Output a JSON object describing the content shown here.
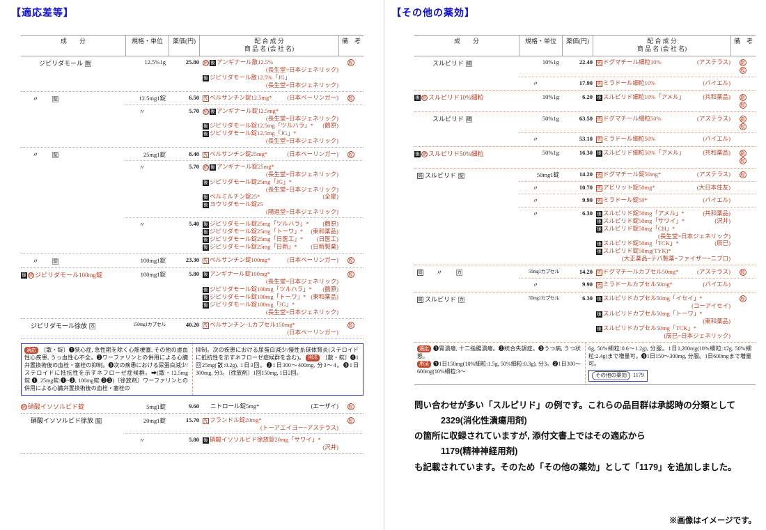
{
  "titles": {
    "left": "【適応差等】",
    "right": "【その他の薬効】"
  },
  "table_headers": {
    "ingredient": "成　　分",
    "unit": "規格・単位",
    "price": "薬価(円)",
    "products_line1": "配 合 成 分",
    "products_line2": "商 品 名 (会 社 名)",
    "remarks": "備　考"
  },
  "marker_glyphs": {
    "sen": "先",
    "kou": "後",
    "tou": "統",
    "kyoku": "局",
    "gen": "般",
    "geki": "劇",
    "ditto": "〃"
  },
  "colors": {
    "title_blue": "#1212cc",
    "accent_red": "#b0462c",
    "note_border_blue": "#2b3bc0",
    "label_red_bg": "#c04b33",
    "text_black": "#222222"
  },
  "left_table": {
    "rows": [
      {
        "indent": 26,
        "ing": [
          {
            "t": "text",
            "v": "ジピリダモール"
          },
          {
            "t": "form",
            "v": "散"
          }
        ],
        "lines": [
          {
            "unit": "12.5%1g",
            "price": "25.80",
            "biko": [
              "gen"
            ],
            "products": [
              {
                "marks": [
                  "tou",
                  "kou"
                ],
                "name": "アンギナール散12.5%",
                "co": "(長生堂=日本ジェネリック)"
              },
              {
                "marks": [
                  "kou"
                ],
                "name": "ジピリダモール散12.5%「JG」",
                "co": "(長生堂=日本ジェネリック)"
              }
            ]
          }
        ]
      },
      {
        "indent": 0,
        "ing": [
          {
            "t": "ditto",
            "v": "〃"
          },
          {
            "t": "form",
            "v": "錠"
          }
        ],
        "lines": [
          {
            "unit": "12.5mg1錠",
            "price": "6.50",
            "biko": [
              "gen"
            ],
            "products": [
              {
                "marks": [
                  "sen"
                ],
                "name": "ベルサンチン錠12.5mg*",
                "co": "(日本ベーリンガー)"
              }
            ]
          },
          {
            "unit": "〃",
            "price": "5.70",
            "biko": [],
            "products": [
              {
                "marks": [
                  "tou",
                  "kou"
                ],
                "name": "アンギナール錠12.5mg*",
                "co": "(長生堂=日本ジェネリック)"
              },
              {
                "marks": [
                  "kou"
                ],
                "name": "ジピリダモール錠12.5mg「ツルハラ」*",
                "co": "(鶴原)"
              },
              {
                "marks": [
                  "kou"
                ],
                "name": "ジピリダモール錠12.5mg「JG」*",
                "co": "(長生堂=日本ジェネリック)"
              }
            ]
          }
        ]
      },
      {
        "indent": 0,
        "ing": [
          {
            "t": "ditto",
            "v": "〃"
          },
          {
            "t": "form",
            "v": "錠"
          }
        ],
        "lines": [
          {
            "unit": "25mg1錠",
            "price": "8.40",
            "biko": [
              "gen"
            ],
            "products": [
              {
                "marks": [
                  "sen"
                ],
                "name": "ベルサンチン錠25mg*",
                "co": "(日本ベーリンガー)"
              }
            ]
          },
          {
            "unit": "〃",
            "price": "5.70",
            "biko": [],
            "products": [
              {
                "marks": [
                  "tou",
                  "kou"
                ],
                "name": "アンギナール錠25mg*",
                "co": "(長生堂=日本ジェネリック)"
              },
              {
                "marks": [
                  "kou"
                ],
                "name": "ジピリダモール錠25mg「JG」*",
                "co": "(長生堂=日本ジェネリック)"
              },
              {
                "marks": [
                  "kou"
                ],
                "name": "ペルミルチン錠25*",
                "co": "(全星)"
              },
              {
                "marks": [
                  "kou"
                ],
                "name": "ヨウリダモール錠25",
                "co": "(陽進堂=日本ジェネリック)"
              }
            ]
          },
          {
            "unit": "〃",
            "price": "5.40",
            "biko": [],
            "products": [
              {
                "marks": [
                  "kou"
                ],
                "name": "ジピリダモール錠25mg「ツルハラ」*",
                "co": "(鶴原)"
              },
              {
                "marks": [
                  "kou"
                ],
                "name": "ジピリダモール錠25mg「トーワ」*",
                "co": "(東和薬品)"
              },
              {
                "marks": [
                  "kou"
                ],
                "name": "ジピリダモール錠25mg「日医工」*",
                "co": "(日医工)"
              },
              {
                "marks": [
                  "kou"
                ],
                "name": "ジピリダモール錠25mg「日新」*",
                "co": "(日新製薬)"
              }
            ]
          }
        ]
      },
      {
        "indent": 0,
        "ing": [
          {
            "t": "ditto",
            "v": "〃"
          },
          {
            "t": "form",
            "v": "錠"
          }
        ],
        "lines": [
          {
            "unit": "100mg1錠",
            "price": "23.30",
            "biko": [
              "gen"
            ],
            "products": [
              {
                "marks": [
                  "sen"
                ],
                "name": "ペルサンチン錠100mg*",
                "co": "(日本ベーリンガー)"
              }
            ]
          }
        ]
      },
      {
        "indent": 0,
        "ing": [
          {
            "t": "kou"
          },
          {
            "t": "tou"
          },
          {
            "t": "textred",
            "v": "ジピリダモール100mg錠"
          }
        ],
        "lines": [
          {
            "unit": "100mg1錠",
            "price": "5.80",
            "biko": [
              "gen"
            ],
            "products": [
              {
                "marks": [
                  "kou"
                ],
                "name": "アンギナール錠100mg*",
                "co": "(長生堂=日本ジェネリック)"
              },
              {
                "marks": [
                  "kou"
                ],
                "name": "ジピリダモール錠100mg「ツルハラ」*",
                "co": "(鶴原)"
              },
              {
                "marks": [
                  "kou"
                ],
                "name": "ジピリダモール錠100mg「トーワ」*",
                "co": "(東和薬品)"
              },
              {
                "marks": [
                  "kou"
                ],
                "name": "ジピリダモール錠100mg「JG」*",
                "co": "(長生堂=日本ジェネリック)"
              }
            ]
          }
        ]
      },
      {
        "indent": 14,
        "ing": [
          {
            "t": "text",
            "v": "ジピリダモール徐放"
          },
          {
            "t": "form",
            "v": "カ"
          }
        ],
        "lines": [
          {
            "unit": "150mg1カプセル",
            "price": "40.20",
            "biko": [
              "gen"
            ],
            "products": [
              {
                "marks": [
                  "sen"
                ],
                "name": "ペルサンチン−Lカプセル150mg*",
                "co": "(日本ベーリンガー)"
              }
            ]
          }
        ]
      }
    ],
    "rows2": [
      {
        "indent": 0,
        "ing": [
          {
            "t": "tou"
          },
          {
            "t": "textred",
            "v": "硝酸イソソルビド錠"
          }
        ],
        "lines": [
          {
            "unit": "5mg1錠",
            "price": "9.60",
            "biko": [
              "gen"
            ],
            "products": [
              {
                "marks": [],
                "black": true,
                "pad": true,
                "name": "ニトロール錠5mg*",
                "co": "(エーザイ)"
              }
            ]
          }
        ]
      },
      {
        "indent": 14,
        "ing": [
          {
            "t": "text",
            "v": "硝酸イソソルビド徐放"
          },
          {
            "t": "form",
            "v": "錠"
          }
        ],
        "lines": [
          {
            "unit": "20mg1錠",
            "price": "15.70",
            "biko": [
              "gen"
            ],
            "products": [
              {
                "marks": [
                  "sen"
                ],
                "name": "フランドル錠20mg*",
                "co": "(トーアエイヨー=アステラス)"
              }
            ]
          },
          {
            "unit": "〃",
            "price": "5.80",
            "biko": [],
            "products": [
              {
                "marks": [
                  "kou"
                ],
                "name": "硝酸イソソルビド徐放錠20mg「サワイ」*",
                "co": "(沢井)"
              }
            ]
          }
        ]
      }
    ]
  },
  "right_table": {
    "rows": [
      {
        "indent": 26,
        "ing": [
          {
            "t": "text",
            "v": "スルピリド"
          },
          {
            "t": "form",
            "v": "細"
          }
        ],
        "lines": [
          {
            "unit": "10%1g",
            "price": "22.40",
            "biko": [
              "geki",
              "gen"
            ],
            "products": [
              {
                "marks": [
                  "sen"
                ],
                "name": "ドグマチール細粒10%",
                "co": "(アステラス)"
              }
            ]
          },
          {
            "unit": "〃",
            "price": "17.90",
            "biko": [],
            "products": [
              {
                "marks": [
                  "sen"
                ],
                "name": "ミラドール細粒10%",
                "co": "(バイエル)"
              }
            ]
          }
        ]
      },
      {
        "indent": 0,
        "ing": [
          {
            "t": "kou"
          },
          {
            "t": "tou"
          },
          {
            "t": "textred",
            "v": "スルピリド10%細粒"
          }
        ],
        "lines": [
          {
            "unit": "10%1g",
            "price": "6.20",
            "biko": [
              "geki",
              "gen"
            ],
            "products": [
              {
                "marks": [
                  "kou"
                ],
                "name": "スルピリド細粒10%「アメル」",
                "co": "(共和薬品)"
              }
            ]
          }
        ]
      },
      {
        "indent": 26,
        "ing": [
          {
            "t": "text",
            "v": "スルピリド"
          },
          {
            "t": "form",
            "v": "細"
          }
        ],
        "lines": [
          {
            "unit": "50%1g",
            "price": "63.50",
            "biko": [
              "geki",
              "gen"
            ],
            "products": [
              {
                "marks": [
                  "sen"
                ],
                "name": "ドグマチール細粒50%",
                "co": "(アステラス)"
              }
            ]
          },
          {
            "unit": "〃",
            "price": "53.10",
            "biko": [],
            "products": [
              {
                "marks": [
                  "sen"
                ],
                "name": "ミラドール細粒50%",
                "co": "(バイエル)"
              }
            ]
          }
        ]
      },
      {
        "indent": 0,
        "ing": [
          {
            "t": "kou"
          },
          {
            "t": "tou"
          },
          {
            "t": "textred",
            "v": "スルピリド50%細粒"
          }
        ],
        "lines": [
          {
            "unit": "50%1g",
            "price": "16.30",
            "biko": [
              "geki",
              "gen"
            ],
            "products": [
              {
                "marks": [
                  "kou"
                ],
                "name": "スルピリド細粒50%「アメル」",
                "co": "(共和薬品)"
              }
            ]
          }
        ]
      },
      {
        "indent": 4,
        "ing": [
          {
            "t": "kyoku"
          },
          {
            "t": "text",
            "v": "スルピリド"
          },
          {
            "t": "form",
            "v": "錠"
          }
        ],
        "lines": [
          {
            "unit": "50mg1錠",
            "price": "14.20",
            "biko": [
              "gen"
            ],
            "products": [
              {
                "marks": [
                  "sen"
                ],
                "name": "ドグマチール錠50mg*",
                "co": "(アステラス)"
              }
            ]
          },
          {
            "unit": "〃",
            "price": "10.70",
            "biko": [],
            "products": [
              {
                "marks": [
                  "sen"
                ],
                "name": "アビリット錠50mg*",
                "co": "(大日本住友)"
              }
            ]
          },
          {
            "unit": "〃",
            "price": "9.90",
            "biko": [],
            "products": [
              {
                "marks": [
                  "sen"
                ],
                "name": "ミラドール錠50*",
                "co": "(バイエル)"
              }
            ]
          },
          {
            "unit": "〃",
            "price": "6.30",
            "biko": [],
            "products": [
              {
                "marks": [
                  "kou"
                ],
                "name": "スルピリド錠50mg「アメル」*",
                "co": "(共和薬品)"
              },
              {
                "marks": [
                  "kou"
                ],
                "name": "スルピリド錠50mg「サワイ」*",
                "co": "(沢井)"
              },
              {
                "marks": [
                  "kou"
                ],
                "name": "スルピリド錠50mg「CH」*",
                "co": "(長生堂=日本ジェネリック)"
              },
              {
                "marks": [
                  "kou"
                ],
                "name": "スルピリド錠50mg「TCK」*",
                "co": "(辰巳)"
              },
              {
                "marks": [
                  "kou"
                ],
                "name": "スルピリド錠50mg(TYK)*",
                "co": "(大正薬品=テバ製薬=ファイザー=ニプロ)"
              }
            ]
          }
        ]
      },
      {
        "indent": 4,
        "ing": [
          {
            "t": "kyoku"
          },
          {
            "t": "ditto",
            "v": "〃"
          },
          {
            "t": "form",
            "v": "カ"
          }
        ],
        "lines": [
          {
            "unit": "50mg1カプセル",
            "price": "14.20",
            "biko": [
              "gen"
            ],
            "products": [
              {
                "marks": [
                  "sen"
                ],
                "name": "ドグマチールカプセル50mg*",
                "co": "(アステラス)"
              }
            ]
          },
          {
            "unit": "〃",
            "price": "9.90",
            "biko": [],
            "products": [
              {
                "marks": [
                  "sen"
                ],
                "name": "ミラドールカプセル50mg*",
                "co": "(バイエル)"
              }
            ]
          }
        ]
      },
      {
        "indent": 4,
        "ing": [
          {
            "t": "kyoku"
          },
          {
            "t": "text",
            "v": "スルピリド"
          },
          {
            "t": "form",
            "v": "カ"
          }
        ],
        "lines": [
          {
            "unit": "50mg1カプセル",
            "price": "6.30",
            "biko": [
              "gen"
            ],
            "products": [
              {
                "marks": [
                  "kou"
                ],
                "name": "スルピリドカプセル50mg「イセイ」*",
                "co": "(コーアイセイ)"
              },
              {
                "marks": [
                  "kou"
                ],
                "name": "スルピリドカプセル50mg「トーワ」*",
                "co": "(東和薬品)"
              },
              {
                "marks": [
                  "kou"
                ],
                "name": "スルピリドカプセル50mg「TCK」*",
                "co": "(辰巳=日本ジェネリック)"
              }
            ]
          }
        ]
      }
    ]
  },
  "left_note": {
    "col1_label": "適応",
    "col1_text": "〔散・錠〕❶狭心症, 急性期を除く心筋梗塞, その他の虚血性心疾患, うっ血性心不全。❷ワーファリンとの併用による心臓弁置換術後の血栓・塞栓の抑制。❸次の疾患における尿蛋白減少/ステロイドに抵抗性を示すネフローゼ症候群。➡(散・12.5mg錠:❶, 25mg錠:❶~❸, 100mg錠:❷❸)〔徐放剤〕ワーファリンとの併用による心臓弁置換術後の血栓・塞栓の",
    "col2_text1": "抑制。次の疾患における尿蛋白減少/慢性糸球体腎炎(ステロイドに抵抗性を示すネフローゼ症候群を含む)。",
    "col2_label": "用法",
    "col2_text2": "〔散・錠〕❶1回25mg(散:0.2g), 1日3回。❷1日300～400mg, 分3～4。❸1日300mg, 分3。〔徐放剤〕1回150mg, 1日2回。"
  },
  "right_note": {
    "tekio_label": "適応",
    "tekio_text": "❶胃潰瘍, 十二指腸潰瘍。❷統合失調症。❸うつ病, うつ状態。",
    "yoho_label": "用法",
    "yoho_text": "❶1日150mg(10%細粒:1.5g, 50%細粒:0.3g), 分3。❷1日300～600mg(10%細粒:3～",
    "col2_text": "6g, 50%細粒:0.6～1.2g), 分服。1日1,200mg(10%細粒:12g, 50%細粒:2.4g)まで増量可。❸1日150～300mg, 分服。1日600mgまで増量可。",
    "other_label": "その他の薬効",
    "other_code": "1179"
  },
  "paragraph": {
    "lines": [
      {
        "text": "問い合わせが多い「スルピリド」の例です。これらの品目群は承認時の分類として",
        "indent": false
      },
      {
        "text": "2329(消化性潰瘍用剤)",
        "indent": true
      },
      {
        "text": "の箇所に収録されていますが, 添付文書上ではその適応から",
        "indent": false
      },
      {
        "text": "1179(精神神経用剤)",
        "indent": true
      },
      {
        "text": "も記載されています。そのため「その他の薬効」として「1179」を追加しました。",
        "indent": false
      }
    ]
  },
  "footer": "※画像はイメージです。"
}
